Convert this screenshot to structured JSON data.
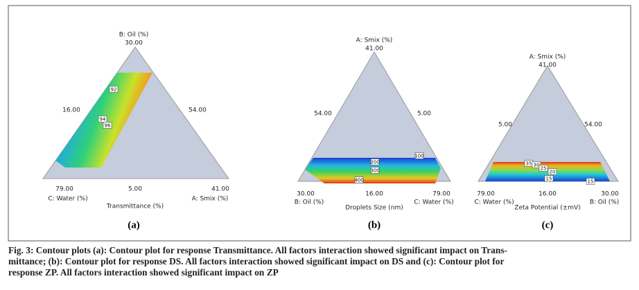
{
  "panels": [
    {
      "apex_title": "B: Oil (%)",
      "apex_value": "30.00",
      "left_side": "16.00",
      "right_side": "54.00",
      "bl_value": "79.00",
      "bl_title": "C: Water (%)",
      "bottom_value": "5.00",
      "br_value": "41.00",
      "br_title": "A: Smix (%)",
      "axis_title": "Transmittance (%)",
      "contours": [
        "92",
        "94",
        "96"
      ],
      "letter": "(a)"
    },
    {
      "apex_title": "A: Smix (%)",
      "apex_value": "41.00",
      "left_side": "54.00",
      "right_side": "5.00",
      "bl_value": "30.00",
      "bl_title": "B: Oil (%)",
      "bottom_value": "16.00",
      "br_value": "79.00",
      "br_title": "C: Water (%)",
      "axis_title": "Droplets Size (nm)",
      "contours": [
        "100",
        "200",
        "300",
        "400"
      ],
      "letter": "(b)"
    },
    {
      "apex_title": "A: Smix (%)",
      "apex_value": "41.00",
      "left_side": "5.00",
      "right_side": "54.00",
      "bl_value": "79.00",
      "bl_title": "C: Water (%)",
      "bottom_value": "16.00",
      "br_value": "30.00",
      "br_title": "B: Oil (%)",
      "axis_title": "Zeta Potential (±mV)",
      "contours": [
        "35",
        "30",
        "25",
        "20",
        "15",
        "15"
      ],
      "letter": "(c)"
    }
  ],
  "caption": [
    "Fig. 3: Contour plots (a): Contour plot for response Transmittance. All factors interaction showed significant impact on Trans-",
    "mittance; (b): Contour plot for response DS. All factors interaction showed significant impact on DS and (c): Contour plot for",
    "response ZP. All factors interaction showed significant impact on ZP"
  ]
}
